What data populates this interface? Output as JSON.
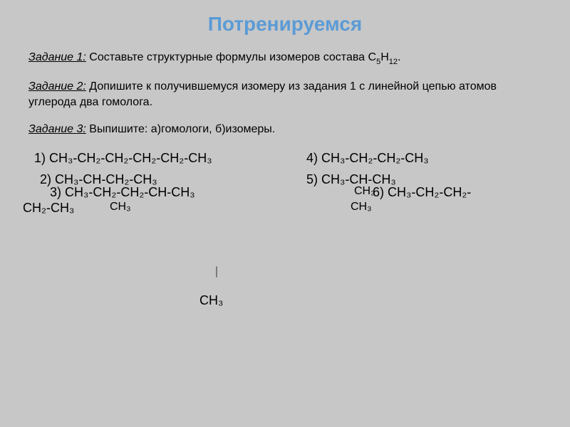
{
  "title": "Потренируемся",
  "tasks": {
    "t1_label": "Задание 1:",
    "t1_text": " Составьте структурные формулы изомеров состава C",
    "t1_sub1": "5",
    "t1_mid": "H",
    "t1_sub2": "12",
    "t1_end": ".",
    "t2_label": "Задание 2:",
    "t2_text": " Допишите к получившемуся изомеру из задания 1 с линейной цепью атомов углерода два гомолога.",
    "t3_label": "Задание 3:",
    "t3_text": " Выпишите: а)гомологи, б)изомеры."
  },
  "formulas": {
    "f1_n": "1) ",
    "f1": "CH₃-CH₂-CH₂-CH₂-CH₂-CH₃",
    "f4_n": "4) ",
    "f4": "CH₃-CH₂-CH₂-CH₃",
    "f2_n": "2) ",
    "f2": "CH₃-CH-CH₂-CH₃",
    "f5_n": "5) ",
    "f5": "CH₃-CH-CH₃",
    "f3_n": "3) ",
    "f3": "CH₃-CH₂-CH₂-CH-CH₃",
    "f3b": "CH₂-CH₃",
    "f3c": "CH₃",
    "f5b": "CH₃",
    "f6_n": "6) ",
    "f6": "CH₃-CH₂-CH₂-",
    "f6b": "CH₃",
    "sym": "⏐",
    "ch3": "CH₃"
  },
  "colors": {
    "background": "#c7c7c7",
    "title": "#5b9bd5",
    "text": "#000000"
  }
}
